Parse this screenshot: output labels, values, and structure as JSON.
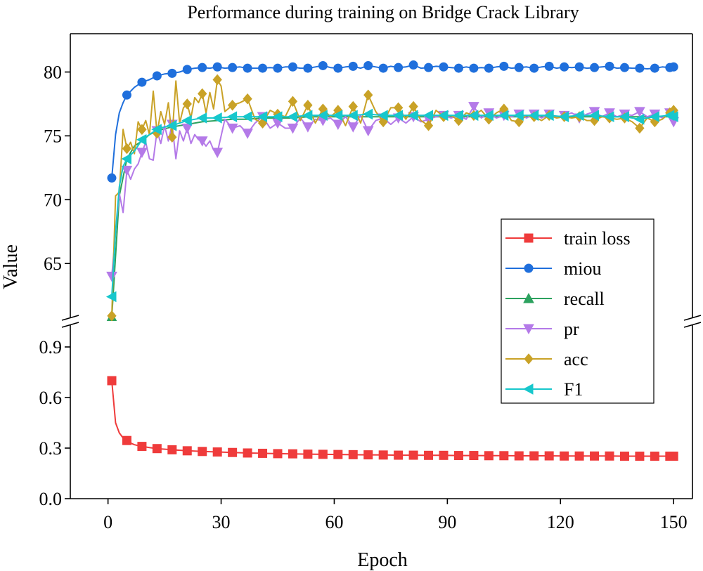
{
  "chart_data": {
    "type": "line",
    "title": "Performance during training on Bridge Crack Library",
    "xlabel": "Epoch",
    "ylabel": "Value",
    "grid": false,
    "broken_y_axis": true,
    "xlim": [
      -10,
      155
    ],
    "xticks": [
      0,
      30,
      60,
      90,
      120,
      150
    ],
    "xtick_labels": [
      "0",
      "30",
      "60",
      "90",
      "120",
      "150"
    ],
    "top_panel": {
      "ylim": [
        60.5,
        83
      ],
      "yticks": [
        65,
        70,
        75,
        80
      ],
      "ytick_labels": [
        "65",
        "70",
        "75",
        "80"
      ]
    },
    "bottom_panel": {
      "ylim": [
        0.0,
        1.05
      ],
      "yticks": [
        0.0,
        0.3,
        0.6,
        0.9
      ],
      "ytick_labels": [
        "0.0",
        "0.3",
        "0.6",
        "0.9"
      ]
    },
    "legend_position": "right-center",
    "series": [
      {
        "name": "train loss",
        "panel": "bottom",
        "color": "#ef3b3b",
        "marker": "square",
        "x": [
          1,
          2,
          3,
          4,
          5,
          6,
          7,
          9,
          11,
          13,
          17,
          21,
          25,
          29,
          33,
          37,
          41,
          45,
          49,
          53,
          57,
          61,
          65,
          69,
          73,
          77,
          81,
          85,
          89,
          93,
          97,
          101,
          105,
          109,
          113,
          117,
          121,
          125,
          129,
          133,
          137,
          141,
          145,
          149,
          150
        ],
        "values": [
          0.7,
          0.45,
          0.39,
          0.36,
          0.345,
          0.33,
          0.32,
          0.31,
          0.303,
          0.297,
          0.29,
          0.284,
          0.28,
          0.277,
          0.274,
          0.271,
          0.269,
          0.267,
          0.266,
          0.264,
          0.263,
          0.262,
          0.261,
          0.26,
          0.259,
          0.258,
          0.258,
          0.257,
          0.257,
          0.256,
          0.256,
          0.255,
          0.255,
          0.254,
          0.254,
          0.254,
          0.253,
          0.253,
          0.253,
          0.253,
          0.252,
          0.252,
          0.252,
          0.252,
          0.252
        ],
        "marker_x": [
          1,
          5,
          9,
          13,
          17,
          21,
          25,
          29,
          33,
          37,
          41,
          45,
          49,
          53,
          57,
          61,
          65,
          69,
          73,
          77,
          81,
          85,
          89,
          93,
          97,
          101,
          105,
          109,
          113,
          117,
          121,
          125,
          129,
          133,
          137,
          141,
          145,
          149,
          150
        ]
      },
      {
        "name": "miou",
        "panel": "top",
        "color": "#1f6fdc",
        "marker": "circle",
        "x": [
          1,
          2,
          3,
          4,
          5,
          7,
          9,
          11,
          13,
          15,
          17,
          19,
          21,
          23,
          25,
          27,
          29,
          31,
          33,
          35,
          37,
          39,
          41,
          43,
          45,
          47,
          49,
          51,
          53,
          55,
          57,
          59,
          61,
          63,
          65,
          67,
          69,
          71,
          73,
          75,
          77,
          79,
          81,
          83,
          85,
          87,
          89,
          91,
          93,
          95,
          97,
          99,
          101,
          103,
          105,
          107,
          109,
          111,
          113,
          115,
          117,
          119,
          121,
          123,
          125,
          127,
          129,
          131,
          133,
          135,
          137,
          139,
          141,
          143,
          145,
          147,
          149,
          150
        ],
        "values": [
          71.7,
          75.1,
          76.8,
          77.6,
          78.2,
          78.8,
          79.2,
          79.4,
          79.7,
          79.85,
          79.9,
          80.0,
          80.2,
          80.3,
          80.35,
          80.3,
          80.4,
          80.3,
          80.35,
          80.4,
          80.3,
          80.3,
          80.3,
          80.35,
          80.3,
          80.4,
          80.4,
          80.3,
          80.3,
          80.4,
          80.5,
          80.35,
          80.3,
          80.4,
          80.45,
          80.3,
          80.5,
          80.4,
          80.3,
          80.45,
          80.35,
          80.4,
          80.55,
          80.3,
          80.35,
          80.45,
          80.4,
          80.35,
          80.3,
          80.4,
          80.3,
          80.35,
          80.3,
          80.4,
          80.45,
          80.3,
          80.35,
          80.4,
          80.3,
          80.4,
          80.45,
          80.3,
          80.4,
          80.35,
          80.4,
          80.3,
          80.35,
          80.4,
          80.45,
          80.3,
          80.35,
          80.3,
          80.3,
          80.25,
          80.3,
          80.4,
          80.35,
          80.4
        ],
        "marker_x": [
          1,
          5,
          9,
          13,
          17,
          21,
          25,
          29,
          33,
          37,
          41,
          45,
          49,
          53,
          57,
          61,
          65,
          69,
          73,
          77,
          81,
          85,
          89,
          93,
          97,
          101,
          105,
          109,
          113,
          117,
          121,
          125,
          129,
          133,
          137,
          141,
          145,
          149,
          150
        ]
      },
      {
        "name": "recall",
        "panel": "top",
        "color": "#2ca25f",
        "marker": "triangle-up",
        "x": [
          1,
          3,
          5,
          7,
          9,
          11,
          13,
          17,
          21,
          25,
          29,
          33,
          37,
          41,
          45,
          49,
          53,
          57,
          61,
          65,
          69,
          73,
          77,
          81,
          85,
          89,
          93,
          97,
          101,
          105,
          109,
          113,
          117,
          121,
          125,
          129,
          133,
          137,
          141,
          145,
          149,
          150
        ],
        "values": [
          60.8,
          70.3,
          73.2,
          74.2,
          74.6,
          75.1,
          75.4,
          75.7,
          75.9,
          76.1,
          76.2,
          76.3,
          76.3,
          76.4,
          76.4,
          76.4,
          76.5,
          76.5,
          76.5,
          76.5,
          76.5,
          76.5,
          76.5,
          76.5,
          76.5,
          76.5,
          76.5,
          76.5,
          76.5,
          76.5,
          76.5,
          76.5,
          76.5,
          76.5,
          76.5,
          76.5,
          76.5,
          76.5,
          76.5,
          76.5,
          76.5,
          76.5
        ],
        "marker_x": [
          1
        ]
      },
      {
        "name": "pr",
        "panel": "top",
        "color": "#b47ae8",
        "marker": "triangle-down",
        "x": [
          1,
          2,
          3,
          4,
          5,
          6,
          7,
          8,
          9,
          10,
          11,
          12,
          13,
          14,
          15,
          16,
          17,
          18,
          19,
          20,
          21,
          22,
          23,
          24,
          25,
          26,
          27,
          28,
          29,
          31,
          33,
          35,
          37,
          39,
          41,
          43,
          45,
          47,
          49,
          51,
          53,
          55,
          57,
          59,
          61,
          63,
          65,
          67,
          69,
          71,
          73,
          75,
          77,
          79,
          81,
          83,
          85,
          87,
          89,
          91,
          93,
          95,
          97,
          99,
          101,
          103,
          105,
          107,
          109,
          111,
          113,
          115,
          117,
          119,
          121,
          123,
          125,
          127,
          129,
          131,
          133,
          135,
          137,
          139,
          141,
          143,
          145,
          147,
          149,
          150
        ],
        "values": [
          64.0,
          67.5,
          70.5,
          69.0,
          72.3,
          71.6,
          72.4,
          72.8,
          73.7,
          74.5,
          73.2,
          73.1,
          75.4,
          74.4,
          75.8,
          74.6,
          75.9,
          73.2,
          75.4,
          74.6,
          75.6,
          74.4,
          75.1,
          74.7,
          74.6,
          74.2,
          74.6,
          73.9,
          73.7,
          76.3,
          75.6,
          75.8,
          75.2,
          76.0,
          76.5,
          75.6,
          76.0,
          75.6,
          75.6,
          76.4,
          75.7,
          76.3,
          76.2,
          76.4,
          75.9,
          76.5,
          75.7,
          76.6,
          75.4,
          76.2,
          76.4,
          75.9,
          76.4,
          76.0,
          76.5,
          76.1,
          76.3,
          76.5,
          76.6,
          76.4,
          76.6,
          76.3,
          77.3,
          76.4,
          76.8,
          76.4,
          76.6,
          76.5,
          76.7,
          76.4,
          76.7,
          76.4,
          76.7,
          76.5,
          76.6,
          76.8,
          76.4,
          76.7,
          76.9,
          76.5,
          76.8,
          76.5,
          76.7,
          76.6,
          76.9,
          76.5,
          76.7,
          76.4,
          76.8,
          76.1
        ],
        "marker_x": [
          1,
          5,
          9,
          13,
          17,
          21,
          25,
          29,
          33,
          37,
          41,
          45,
          49,
          53,
          57,
          61,
          65,
          69,
          73,
          77,
          81,
          85,
          89,
          93,
          97,
          101,
          105,
          109,
          113,
          117,
          121,
          125,
          129,
          133,
          137,
          141,
          145,
          149,
          150
        ]
      },
      {
        "name": "acc",
        "panel": "top",
        "color": "#c9a227",
        "marker": "diamond",
        "x": [
          1,
          2,
          3,
          4,
          5,
          6,
          7,
          8,
          9,
          10,
          11,
          12,
          13,
          14,
          15,
          16,
          17,
          18,
          19,
          20,
          21,
          22,
          23,
          24,
          25,
          26,
          27,
          28,
          29,
          30,
          31,
          33,
          35,
          37,
          39,
          41,
          43,
          45,
          47,
          49,
          51,
          53,
          55,
          57,
          59,
          61,
          63,
          65,
          67,
          69,
          71,
          73,
          75,
          77,
          79,
          81,
          83,
          85,
          87,
          89,
          91,
          93,
          95,
          97,
          99,
          101,
          103,
          105,
          107,
          109,
          111,
          113,
          115,
          117,
          119,
          121,
          123,
          125,
          127,
          129,
          131,
          133,
          135,
          137,
          139,
          141,
          143,
          145,
          147,
          149,
          150
        ],
        "values": [
          60.9,
          70.3,
          70.6,
          75.5,
          74.0,
          74.5,
          73.6,
          76.1,
          75.5,
          76.2,
          75.1,
          78.5,
          75.2,
          76.9,
          75.9,
          77.6,
          74.9,
          79.3,
          76.0,
          77.2,
          77.5,
          76.4,
          78.0,
          77.6,
          78.3,
          76.8,
          78.4,
          77.1,
          79.4,
          78.9,
          76.9,
          77.4,
          77.6,
          77.9,
          76.3,
          76.0,
          77.0,
          76.7,
          76.5,
          77.7,
          76.2,
          77.4,
          76.0,
          77.1,
          76.5,
          77.0,
          75.8,
          77.3,
          76.0,
          78.2,
          76.9,
          76.1,
          77.2,
          77.2,
          76.3,
          77.3,
          76.2,
          75.8,
          77.0,
          76.5,
          76.6,
          76.2,
          76.8,
          76.6,
          77.0,
          76.3,
          76.8,
          77.1,
          76.2,
          76.1,
          76.6,
          76.5,
          76.2,
          76.6,
          76.4,
          76.5,
          76.4,
          76.5,
          76.2,
          76.2,
          76.5,
          76.4,
          76.3,
          76.4,
          76.1,
          75.6,
          76.4,
          76.1,
          76.3,
          76.8,
          77.0
        ],
        "marker_x": [
          1,
          5,
          9,
          13,
          17,
          21,
          25,
          29,
          33,
          37,
          41,
          45,
          49,
          53,
          57,
          61,
          65,
          69,
          73,
          77,
          81,
          85,
          89,
          93,
          97,
          101,
          105,
          109,
          113,
          117,
          121,
          125,
          129,
          133,
          137,
          141,
          145,
          149,
          150
        ]
      },
      {
        "name": "F1",
        "panel": "top",
        "color": "#17c7cc",
        "marker": "triangle-left",
        "x": [
          1,
          2,
          3,
          4,
          5,
          7,
          9,
          11,
          13,
          15,
          17,
          19,
          21,
          23,
          25,
          27,
          29,
          33,
          37,
          41,
          45,
          49,
          53,
          57,
          61,
          65,
          69,
          73,
          77,
          81,
          85,
          89,
          93,
          97,
          101,
          105,
          109,
          113,
          117,
          121,
          125,
          129,
          133,
          137,
          141,
          145,
          149,
          150
        ],
        "values": [
          62.4,
          67.5,
          71.0,
          72.6,
          73.2,
          73.8,
          74.7,
          75.1,
          75.5,
          75.7,
          75.8,
          76.0,
          76.2,
          76.3,
          76.4,
          76.4,
          76.4,
          76.5,
          76.5,
          76.5,
          76.5,
          76.5,
          76.6,
          76.6,
          76.6,
          76.6,
          76.7,
          76.6,
          76.6,
          76.6,
          76.6,
          76.6,
          76.6,
          76.6,
          76.6,
          76.6,
          76.6,
          76.6,
          76.6,
          76.5,
          76.6,
          76.6,
          76.5,
          76.5,
          76.3,
          76.5,
          76.6,
          76.5
        ],
        "marker_x": [
          1,
          5,
          9,
          13,
          17,
          21,
          25,
          29,
          33,
          37,
          41,
          45,
          49,
          53,
          57,
          61,
          65,
          69,
          73,
          77,
          81,
          85,
          89,
          93,
          97,
          101,
          105,
          109,
          113,
          117,
          121,
          125,
          129,
          133,
          137,
          141,
          145,
          149,
          150
        ]
      }
    ]
  }
}
